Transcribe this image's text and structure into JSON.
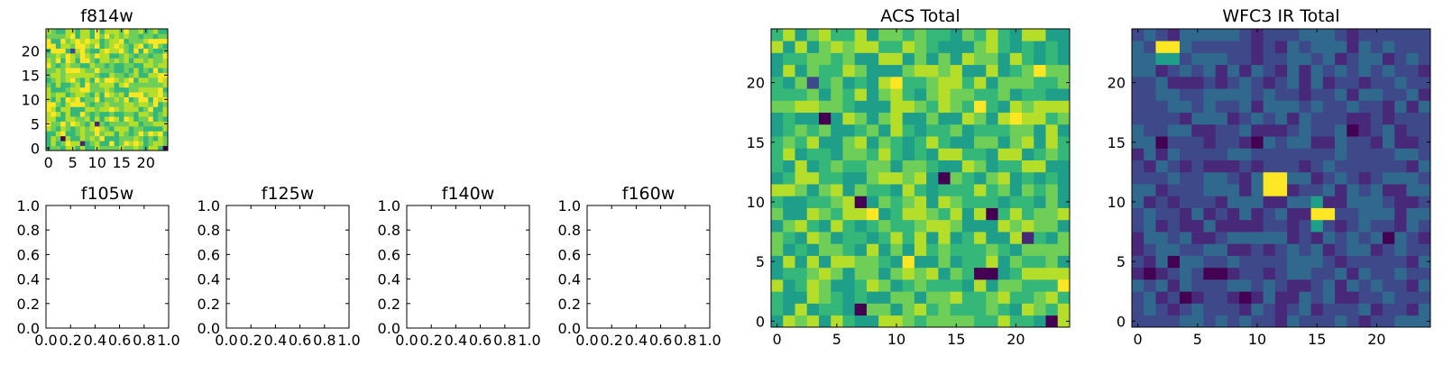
{
  "colormap": [
    "#440154",
    "#482878",
    "#3e4989",
    "#31688e",
    "#26828e",
    "#1f9e89",
    "#35b779",
    "#6ece58",
    "#b5de2b",
    "#fde725"
  ],
  "chart_data": [
    {
      "id": "f814w",
      "type": "heatmap",
      "title": "f814w",
      "grid_size": 25,
      "xlim": [
        -0.5,
        24.5
      ],
      "ylim": [
        -0.5,
        24.5
      ],
      "xticks": [
        0,
        5,
        10,
        15,
        20
      ],
      "yticks": [
        0,
        5,
        10,
        15,
        20
      ],
      "value_range": [
        0.62,
        1.0
      ],
      "pattern": "random",
      "seed": 11,
      "outliers": [
        [
          3,
          2,
          0.0
        ],
        [
          7,
          1,
          0.1
        ],
        [
          24,
          0,
          0.05
        ],
        [
          10,
          5,
          0.15
        ],
        [
          5,
          20,
          0.2
        ]
      ]
    },
    {
      "id": "f105w",
      "type": "empty",
      "title": "f105w",
      "xlim": [
        0.0,
        1.0
      ],
      "ylim": [
        0.0,
        1.0
      ],
      "xticklabels": [
        "0.0",
        "0.2",
        "0.4",
        "0.6",
        "0.8",
        "1.0"
      ],
      "yticklabels": [
        "0.0",
        "0.2",
        "0.4",
        "0.6",
        "0.8",
        "1.0"
      ]
    },
    {
      "id": "f125w",
      "type": "empty",
      "title": "f125w",
      "xlim": [
        0.0,
        1.0
      ],
      "ylim": [
        0.0,
        1.0
      ],
      "xticklabels": [
        "0.0",
        "0.2",
        "0.4",
        "0.6",
        "0.8",
        "1.0"
      ],
      "yticklabels": [
        "0.0",
        "0.2",
        "0.4",
        "0.6",
        "0.8",
        "1.0"
      ]
    },
    {
      "id": "f140w",
      "type": "empty",
      "title": "f140w",
      "xlim": [
        0.0,
        1.0
      ],
      "ylim": [
        0.0,
        1.0
      ],
      "xticklabels": [
        "0.0",
        "0.2",
        "0.4",
        "0.6",
        "0.8",
        "1.0"
      ],
      "yticklabels": [
        "0.0",
        "0.2",
        "0.4",
        "0.6",
        "0.8",
        "1.0"
      ]
    },
    {
      "id": "f160w",
      "type": "empty",
      "title": "f160w",
      "xlim": [
        0.0,
        1.0
      ],
      "ylim": [
        0.0,
        1.0
      ],
      "xticklabels": [
        "0.0",
        "0.2",
        "0.4",
        "0.6",
        "0.8",
        "1.0"
      ],
      "yticklabels": [
        "0.0",
        "0.2",
        "0.4",
        "0.6",
        "0.8",
        "1.0"
      ]
    },
    {
      "id": "acs-total",
      "type": "heatmap",
      "title": "ACS Total",
      "grid_size": 25,
      "xlim": [
        -0.5,
        24.5
      ],
      "ylim": [
        -0.5,
        24.5
      ],
      "xticks": [
        0,
        5,
        10,
        15,
        20
      ],
      "yticks": [
        0,
        5,
        10,
        15,
        20
      ],
      "value_range": [
        0.5,
        0.92
      ],
      "pattern": "random",
      "seed": 7,
      "outliers": [
        [
          4,
          17,
          0.0
        ],
        [
          7,
          10,
          0.0
        ],
        [
          14,
          12,
          0.0
        ],
        [
          18,
          9,
          0.05
        ],
        [
          17,
          4,
          0.0
        ],
        [
          18,
          4,
          0.0
        ],
        [
          23,
          0,
          0.0
        ],
        [
          7,
          1,
          0.05
        ],
        [
          10,
          20,
          1.0
        ],
        [
          17,
          18,
          1.0
        ],
        [
          20,
          17,
          1.0
        ],
        [
          22,
          21,
          1.0
        ],
        [
          11,
          5,
          1.0
        ],
        [
          8,
          9,
          1.0
        ],
        [
          24,
          3,
          1.0
        ],
        [
          21,
          7,
          0.15
        ],
        [
          3,
          20,
          0.2
        ]
      ]
    },
    {
      "id": "wfc3-ir-total",
      "type": "heatmap",
      "title": "WFC3 IR Total",
      "grid_size": 25,
      "xlim": [
        -0.5,
        24.5
      ],
      "ylim": [
        -0.5,
        24.5
      ],
      "xticks": [
        0,
        5,
        10,
        15,
        20
      ],
      "yticks": [
        0,
        5,
        10,
        15,
        20
      ],
      "value_range": [
        0.12,
        0.36
      ],
      "pattern": "random",
      "seed": 23,
      "outliers": [
        [
          2,
          23,
          1.0
        ],
        [
          3,
          23,
          1.0
        ],
        [
          2,
          22,
          0.55
        ],
        [
          3,
          22,
          0.55
        ],
        [
          11,
          12,
          1.0
        ],
        [
          12,
          12,
          1.0
        ],
        [
          11,
          11,
          1.0
        ],
        [
          12,
          11,
          1.0
        ],
        [
          15,
          9,
          1.0
        ],
        [
          16,
          9,
          1.0
        ],
        [
          15,
          10,
          0.6
        ],
        [
          15,
          8,
          0.55
        ],
        [
          2,
          15,
          0.0
        ],
        [
          10,
          15,
          0.0
        ],
        [
          18,
          16,
          0.0
        ],
        [
          1,
          4,
          0.0
        ],
        [
          6,
          4,
          0.0
        ],
        [
          7,
          4,
          0.05
        ],
        [
          4,
          2,
          0.0
        ],
        [
          9,
          2,
          0.05
        ],
        [
          21,
          7,
          0.0
        ],
        [
          3,
          5,
          0.05
        ]
      ]
    }
  ]
}
